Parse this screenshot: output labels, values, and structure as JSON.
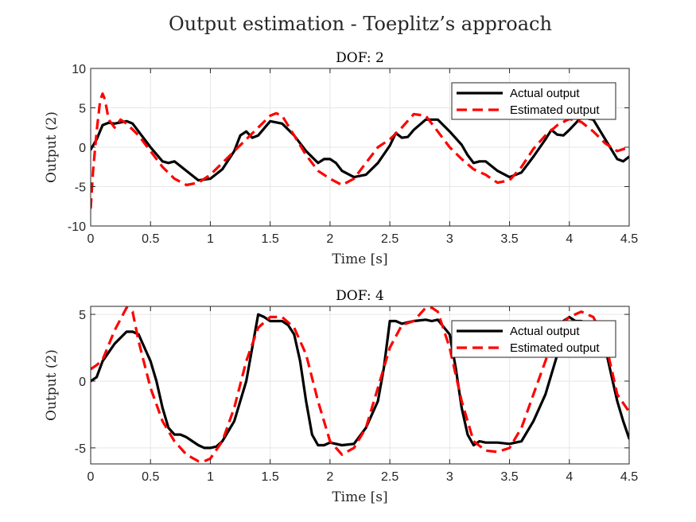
{
  "figure": {
    "title": "Output estimation - Toeplitz’s approach"
  },
  "colors": {
    "actual": "#000000",
    "estimated": "#ff0000",
    "grid": "#e6e6e6",
    "axis": "#262626"
  },
  "chart_data": [
    {
      "type": "line",
      "title": "DOF: 2",
      "xlabel": "Time [s]",
      "ylabel": "Output (2)",
      "xlim": [
        0,
        4.5
      ],
      "ylim": [
        -10,
        10
      ],
      "xticks": [
        "0",
        "0.5",
        "1",
        "1.5",
        "2",
        "2.5",
        "3",
        "3.5",
        "4",
        "4.5"
      ],
      "yticks": [
        "-10",
        "-5",
        "0",
        "5",
        "10"
      ],
      "grid": true,
      "legend": "top-right",
      "series": [
        {
          "name": "Actual output",
          "style": "solid",
          "x": [
            0,
            0.05,
            0.1,
            0.15,
            0.2,
            0.3,
            0.35,
            0.4,
            0.5,
            0.6,
            0.65,
            0.7,
            0.8,
            0.9,
            1.0,
            1.1,
            1.2,
            1.25,
            1.3,
            1.35,
            1.4,
            1.5,
            1.6,
            1.7,
            1.8,
            1.9,
            1.95,
            2.0,
            2.05,
            2.1,
            2.2,
            2.3,
            2.4,
            2.5,
            2.55,
            2.6,
            2.65,
            2.7,
            2.8,
            2.9,
            3.0,
            3.1,
            3.15,
            3.2,
            3.25,
            3.3,
            3.4,
            3.5,
            3.6,
            3.7,
            3.8,
            3.85,
            3.9,
            3.95,
            4.0,
            4.1,
            4.2,
            4.3,
            4.4,
            4.45,
            4.5
          ],
          "y": [
            -0.3,
            1.0,
            2.8,
            3.1,
            3.0,
            3.3,
            3.0,
            2.0,
            0.0,
            -1.8,
            -2.0,
            -1.8,
            -3.0,
            -4.2,
            -4.0,
            -2.8,
            -0.5,
            1.5,
            2.0,
            1.2,
            1.5,
            3.3,
            3.0,
            1.5,
            -0.5,
            -2.0,
            -1.5,
            -1.5,
            -2.0,
            -3.0,
            -3.8,
            -3.5,
            -2.0,
            0.2,
            1.8,
            1.2,
            1.3,
            2.2,
            3.5,
            3.5,
            2.0,
            0.3,
            -1.0,
            -2.0,
            -1.8,
            -1.8,
            -3.0,
            -3.8,
            -3.2,
            -1.2,
            1.0,
            2.2,
            1.6,
            1.5,
            2.2,
            3.8,
            3.5,
            1.0,
            -1.5,
            -1.8,
            -1.2
          ]
        },
        {
          "name": "Estimated output",
          "style": "dashed",
          "x": [
            0,
            0.02,
            0.05,
            0.08,
            0.1,
            0.12,
            0.15,
            0.2,
            0.25,
            0.3,
            0.4,
            0.5,
            0.6,
            0.7,
            0.8,
            0.9,
            1.0,
            1.1,
            1.2,
            1.3,
            1.4,
            1.5,
            1.55,
            1.6,
            1.7,
            1.8,
            1.9,
            2.0,
            2.1,
            2.2,
            2.3,
            2.4,
            2.5,
            2.6,
            2.7,
            2.8,
            2.9,
            3.0,
            3.1,
            3.2,
            3.3,
            3.4,
            3.5,
            3.6,
            3.7,
            3.8,
            3.9,
            4.0,
            4.1,
            4.2,
            4.3,
            4.4,
            4.5
          ],
          "y": [
            -7.8,
            -3.0,
            2.0,
            6.0,
            6.8,
            6.0,
            3.5,
            2.5,
            3.5,
            3.0,
            1.5,
            -0.5,
            -2.5,
            -4.0,
            -4.8,
            -4.5,
            -3.5,
            -2.0,
            -0.5,
            1.0,
            2.5,
            4.0,
            4.3,
            4.0,
            1.5,
            -1.0,
            -3.0,
            -4.0,
            -4.8,
            -4.0,
            -2.0,
            0.0,
            1.0,
            2.5,
            4.2,
            4.0,
            2.0,
            0.0,
            -1.5,
            -2.8,
            -3.5,
            -4.5,
            -4.2,
            -2.5,
            -0.2,
            1.5,
            2.8,
            3.6,
            3.2,
            2.0,
            0.5,
            -0.5,
            0.0
          ]
        }
      ]
    },
    {
      "type": "line",
      "title": "DOF: 4",
      "xlabel": "Time [s]",
      "ylabel": "Output (2)",
      "xlim": [
        0,
        4.5
      ],
      "ylim": [
        -6.2,
        5.6
      ],
      "xticks": [
        "0",
        "0.5",
        "1",
        "1.5",
        "2",
        "2.5",
        "3",
        "3.5",
        "4",
        "4.5"
      ],
      "yticks": [
        "-5",
        "0",
        "5"
      ],
      "grid": true,
      "legend": "top-right",
      "series": [
        {
          "name": "Actual output",
          "style": "solid",
          "x": [
            0,
            0.05,
            0.1,
            0.2,
            0.3,
            0.35,
            0.4,
            0.45,
            0.5,
            0.55,
            0.6,
            0.65,
            0.7,
            0.75,
            0.8,
            0.85,
            0.9,
            0.95,
            1.0,
            1.05,
            1.1,
            1.2,
            1.3,
            1.35,
            1.4,
            1.45,
            1.5,
            1.6,
            1.65,
            1.7,
            1.75,
            1.8,
            1.85,
            1.9,
            1.95,
            2.0,
            2.1,
            2.2,
            2.3,
            2.4,
            2.45,
            2.5,
            2.55,
            2.6,
            2.7,
            2.8,
            2.85,
            2.9,
            3.0,
            3.05,
            3.1,
            3.15,
            3.2,
            3.25,
            3.3,
            3.4,
            3.5,
            3.6,
            3.7,
            3.8,
            3.9,
            3.95,
            4.0,
            4.05,
            4.1,
            4.2,
            4.3,
            4.35,
            4.4,
            4.45,
            4.5
          ],
          "y": [
            0.0,
            0.3,
            1.5,
            2.8,
            3.7,
            3.7,
            3.5,
            2.5,
            1.5,
            0.0,
            -2.0,
            -3.5,
            -4.0,
            -4.0,
            -4.2,
            -4.5,
            -4.8,
            -5.0,
            -5.0,
            -4.9,
            -4.5,
            -3.0,
            0.0,
            2.5,
            5.0,
            4.8,
            4.5,
            4.5,
            4.2,
            3.5,
            1.5,
            -1.5,
            -4.0,
            -4.8,
            -4.8,
            -4.6,
            -4.8,
            -4.7,
            -3.5,
            -1.5,
            1.0,
            4.5,
            4.5,
            4.3,
            4.5,
            4.6,
            4.5,
            4.6,
            3.5,
            1.0,
            -2.0,
            -4.0,
            -4.8,
            -4.5,
            -4.6,
            -4.6,
            -4.7,
            -4.5,
            -3.0,
            -1.0,
            2.0,
            4.5,
            4.8,
            4.5,
            4.5,
            4.2,
            2.5,
            0.5,
            -1.5,
            -3.0,
            -4.3
          ]
        },
        {
          "name": "Estimated output",
          "style": "dashed",
          "x": [
            0,
            0.05,
            0.1,
            0.2,
            0.3,
            0.35,
            0.4,
            0.5,
            0.6,
            0.7,
            0.8,
            0.9,
            0.95,
            1.0,
            1.1,
            1.2,
            1.3,
            1.4,
            1.5,
            1.6,
            1.7,
            1.8,
            1.9,
            2.0,
            2.1,
            2.2,
            2.3,
            2.4,
            2.5,
            2.6,
            2.7,
            2.8,
            2.85,
            2.9,
            3.0,
            3.1,
            3.2,
            3.3,
            3.4,
            3.5,
            3.6,
            3.7,
            3.8,
            3.9,
            4.0,
            4.1,
            4.2,
            4.3,
            4.4,
            4.5
          ],
          "y": [
            0.9,
            1.2,
            1.6,
            3.8,
            5.5,
            5.2,
            3.0,
            -0.5,
            -3.0,
            -4.5,
            -5.5,
            -6.0,
            -6.0,
            -5.8,
            -4.5,
            -2.0,
            1.5,
            4.0,
            4.8,
            4.8,
            4.0,
            2.0,
            -1.5,
            -4.5,
            -5.5,
            -5.0,
            -3.5,
            -0.5,
            2.5,
            4.2,
            4.5,
            5.5,
            5.5,
            5.2,
            2.5,
            -1.5,
            -4.5,
            -5.2,
            -5.3,
            -5.0,
            -3.5,
            -1.0,
            1.5,
            4.0,
            4.8,
            5.2,
            4.8,
            3.0,
            -1.0,
            -2.3
          ]
        }
      ]
    }
  ]
}
